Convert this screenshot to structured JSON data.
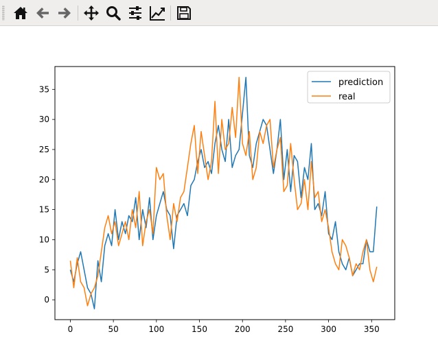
{
  "toolbar": {
    "buttons": [
      {
        "name": "home-button",
        "icon": "home-icon",
        "title": "Reset original view"
      },
      {
        "name": "back-button",
        "icon": "arrow-left-icon",
        "title": "Back to previous view"
      },
      {
        "name": "forward-button",
        "icon": "arrow-right-icon",
        "title": "Forward to next view"
      },
      {
        "name": "pan-button",
        "icon": "move-icon",
        "title": "Pan axes"
      },
      {
        "name": "zoom-button",
        "icon": "magnifier-icon",
        "title": "Zoom to rectangle"
      },
      {
        "name": "subplots-button",
        "icon": "sliders-icon",
        "title": "Configure subplots"
      },
      {
        "name": "customize-button",
        "icon": "line-chart-icon",
        "title": "Edit axis, curve and image parameters"
      },
      {
        "name": "save-button",
        "icon": "floppy-disk-icon",
        "title": "Save the figure"
      }
    ]
  },
  "chart_data": {
    "type": "line",
    "title": "",
    "xlabel": "",
    "ylabel": "",
    "xlim": [
      -17.9,
      376.9
    ],
    "ylim": [
      -3.3,
      38.8
    ],
    "xticks": [
      0,
      50,
      100,
      150,
      200,
      250,
      300,
      350
    ],
    "yticks": [
      0,
      5,
      10,
      15,
      20,
      25,
      30,
      35
    ],
    "grid": false,
    "legend_position": "top-right",
    "series": [
      {
        "name": "prediction",
        "color": "#1f77b4",
        "x": [
          0,
          4,
          8,
          12,
          16,
          20,
          24,
          28,
          32,
          36,
          40,
          44,
          48,
          52,
          56,
          60,
          64,
          68,
          72,
          76,
          80,
          84,
          88,
          92,
          96,
          100,
          104,
          108,
          112,
          116,
          120,
          124,
          128,
          132,
          136,
          140,
          144,
          148,
          152,
          156,
          160,
          164,
          168,
          172,
          176,
          180,
          184,
          188,
          192,
          196,
          200,
          204,
          208,
          212,
          216,
          220,
          224,
          228,
          232,
          236,
          240,
          244,
          248,
          252,
          256,
          260,
          264,
          268,
          272,
          276,
          280,
          284,
          288,
          292,
          296,
          300,
          304,
          308,
          312,
          316,
          320,
          324,
          328,
          332,
          336,
          340,
          344,
          348,
          352,
          356
        ],
        "y": [
          5,
          3,
          6,
          8,
          5,
          2,
          1,
          -1.5,
          6.5,
          3,
          9,
          11,
          9,
          15,
          10,
          13,
          11,
          14,
          13,
          17,
          10,
          15,
          12,
          17,
          10,
          14,
          16,
          18,
          15,
          14,
          8.5,
          14,
          15,
          16,
          14,
          19,
          20,
          23,
          25,
          22,
          23,
          21,
          26,
          29,
          25,
          23,
          30,
          22,
          24,
          25,
          31,
          37,
          24,
          22,
          26,
          28,
          30,
          29,
          25,
          21,
          25,
          30,
          20,
          25,
          18,
          24,
          23,
          17,
          22,
          20,
          26,
          15,
          16,
          14,
          18,
          11,
          10,
          13,
          8,
          6,
          5,
          7,
          4,
          5,
          6,
          6,
          10,
          8,
          8,
          15.5
        ]
      },
      {
        "name": "real",
        "color": "#ff7f0e",
        "x": [
          0,
          4,
          8,
          12,
          16,
          20,
          24,
          28,
          32,
          36,
          40,
          44,
          48,
          52,
          56,
          60,
          64,
          68,
          72,
          76,
          80,
          84,
          88,
          92,
          96,
          100,
          104,
          108,
          112,
          116,
          120,
          124,
          128,
          132,
          136,
          140,
          144,
          148,
          152,
          156,
          160,
          164,
          168,
          172,
          176,
          180,
          184,
          188,
          192,
          196,
          200,
          204,
          208,
          212,
          216,
          220,
          224,
          228,
          232,
          236,
          240,
          244,
          248,
          252,
          256,
          260,
          264,
          268,
          272,
          276,
          280,
          284,
          288,
          292,
          296,
          300,
          304,
          308,
          312,
          316,
          320,
          324,
          328,
          332,
          336,
          340,
          344,
          348,
          352,
          356
        ],
        "y": [
          6.5,
          2,
          7,
          3,
          2,
          -1,
          1,
          2,
          4,
          8,
          12,
          14,
          11,
          13,
          9,
          11,
          13,
          10,
          15,
          12,
          18,
          9,
          13,
          15,
          11,
          22,
          20,
          21,
          14,
          10,
          16,
          13,
          17,
          18,
          22,
          26,
          29,
          21,
          28,
          24,
          20,
          23,
          33,
          21,
          30,
          25,
          26,
          32,
          27,
          37,
          26,
          24,
          28,
          20,
          22,
          28,
          26,
          29,
          30,
          22,
          25,
          27,
          18,
          19,
          26,
          20,
          15,
          16,
          20,
          15,
          23,
          17,
          18,
          13,
          15,
          12,
          8,
          6,
          5,
          10,
          9,
          7,
          4,
          6,
          5,
          8,
          10,
          5,
          3,
          5.5
        ]
      }
    ]
  }
}
